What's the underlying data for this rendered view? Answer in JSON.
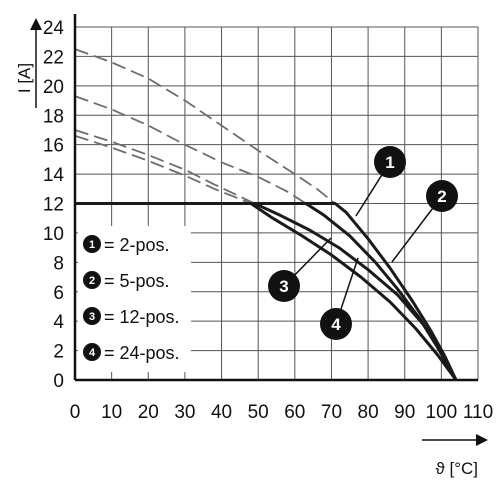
{
  "chart_data": {
    "type": "line",
    "ylabel": "I [A]",
    "xlabel": "ϑ [°C]",
    "xlim": [
      0,
      110
    ],
    "ylim": [
      0,
      24
    ],
    "xticks": [
      "0",
      "10",
      "20",
      "30",
      "40",
      "50",
      "60",
      "70",
      "80",
      "90",
      "100",
      "110"
    ],
    "yticks": [
      "0",
      "2",
      "4",
      "6",
      "8",
      "10",
      "12",
      "14",
      "16",
      "18",
      "20",
      "22",
      "24"
    ],
    "grid": true,
    "colors": {
      "line": "#1a1a1a",
      "dashed": "#6e6e6e",
      "grid": "#555555",
      "badge": "#111111"
    },
    "legend": {
      "placement": "left-center",
      "entries": [
        {
          "num": "1",
          "label": "= 2-pos."
        },
        {
          "num": "2",
          "label": "= 5-pos."
        },
        {
          "num": "3",
          "label": "= 12-pos."
        },
        {
          "num": "4",
          "label": "= 24-pos."
        }
      ]
    },
    "series": [
      {
        "num": "1",
        "points": [
          [
            0,
            12
          ],
          [
            71,
            12
          ],
          [
            74,
            11.4
          ],
          [
            80,
            9.6
          ],
          [
            86,
            7.6
          ],
          [
            92,
            5.4
          ],
          [
            97,
            3.4
          ],
          [
            101,
            1.6
          ],
          [
            104,
            0
          ]
        ],
        "dashed": [
          [
            0,
            22.5
          ],
          [
            10,
            21.6
          ],
          [
            20,
            20.5
          ],
          [
            30,
            19.0
          ],
          [
            40,
            17.3
          ],
          [
            50,
            15.6
          ],
          [
            60,
            14.0
          ],
          [
            66,
            13.0
          ],
          [
            71,
            12
          ]
        ]
      },
      {
        "num": "2",
        "points": [
          [
            0,
            12
          ],
          [
            63,
            12
          ],
          [
            68,
            11.2
          ],
          [
            75,
            9.8
          ],
          [
            82,
            8.0
          ],
          [
            88,
            6.2
          ],
          [
            94,
            4.2
          ],
          [
            99,
            2.2
          ],
          [
            104,
            0
          ]
        ],
        "dashed": [
          [
            0,
            19.3
          ],
          [
            10,
            18.4
          ],
          [
            20,
            17.3
          ],
          [
            30,
            16.0
          ],
          [
            40,
            14.8
          ],
          [
            50,
            13.8
          ],
          [
            58,
            12.8
          ],
          [
            63,
            12
          ]
        ]
      },
      {
        "num": "3",
        "points": [
          [
            0,
            12
          ],
          [
            49,
            12
          ],
          [
            56,
            11.2
          ],
          [
            64,
            10.2
          ],
          [
            72,
            9.0
          ],
          [
            80,
            7.5
          ],
          [
            88,
            5.8
          ],
          [
            95,
            3.8
          ],
          [
            100,
            2.0
          ],
          [
            104,
            0
          ]
        ],
        "dashed": [
          [
            0,
            17.0
          ],
          [
            10,
            16.2
          ],
          [
            20,
            15.3
          ],
          [
            30,
            14.3
          ],
          [
            38,
            13.3
          ],
          [
            44,
            12.6
          ],
          [
            49,
            12
          ]
        ]
      },
      {
        "num": "4",
        "points": [
          [
            0,
            12
          ],
          [
            48,
            12
          ],
          [
            54,
            11.0
          ],
          [
            62,
            9.8
          ],
          [
            70,
            8.5
          ],
          [
            78,
            7.0
          ],
          [
            86,
            5.3
          ],
          [
            93,
            3.5
          ],
          [
            99,
            1.7
          ],
          [
            104,
            0
          ]
        ],
        "dashed": [
          [
            0,
            16.6
          ],
          [
            10,
            15.8
          ],
          [
            20,
            14.9
          ],
          [
            30,
            13.9
          ],
          [
            38,
            13.0
          ],
          [
            44,
            12.4
          ],
          [
            48,
            12
          ]
        ]
      }
    ],
    "callouts": [
      "1",
      "2",
      "3",
      "4"
    ]
  }
}
